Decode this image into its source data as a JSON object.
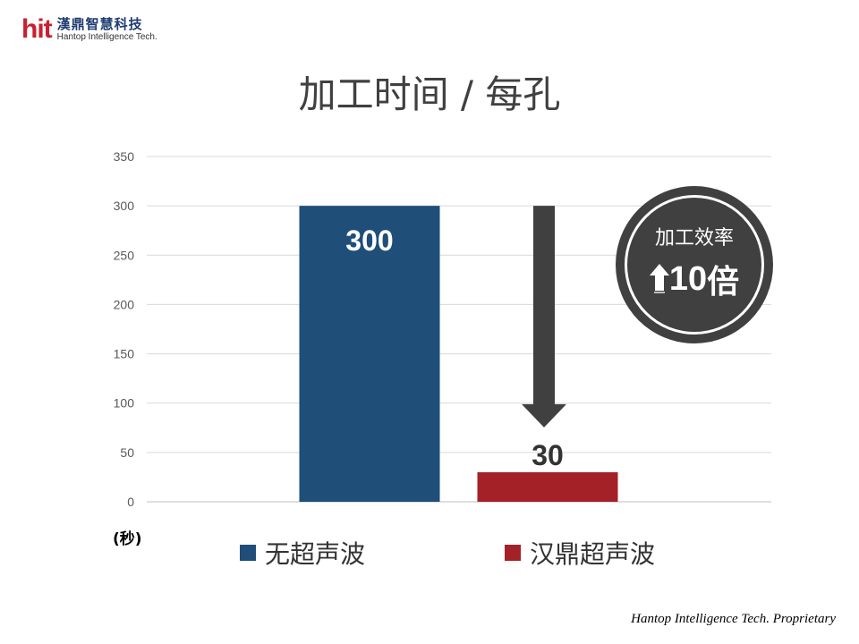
{
  "logo": {
    "mark": "hit",
    "name_cn": "漢鼎智慧科技",
    "name_en": "Hantop Intelligence Tech."
  },
  "title": "加工时间 / 每孔",
  "chart_data": {
    "type": "bar",
    "categories": [
      "无超声波",
      "汉鼎超声波"
    ],
    "values": [
      300,
      30
    ],
    "colors": [
      "#1f4e79",
      "#a52128"
    ],
    "ylim": [
      0,
      350
    ],
    "yticks": [
      0,
      50,
      100,
      150,
      200,
      250,
      300,
      350
    ],
    "ylabel": "(秒)",
    "grid": true,
    "legend": "bottom",
    "data_labels": [
      "300",
      "30"
    ]
  },
  "badge": {
    "label": "加工效率",
    "value": "10",
    "suffix": "倍",
    "icon": "up-arrow-icon",
    "color": "#404040"
  },
  "footer": "Hantop Intelligence Tech. Proprietary"
}
